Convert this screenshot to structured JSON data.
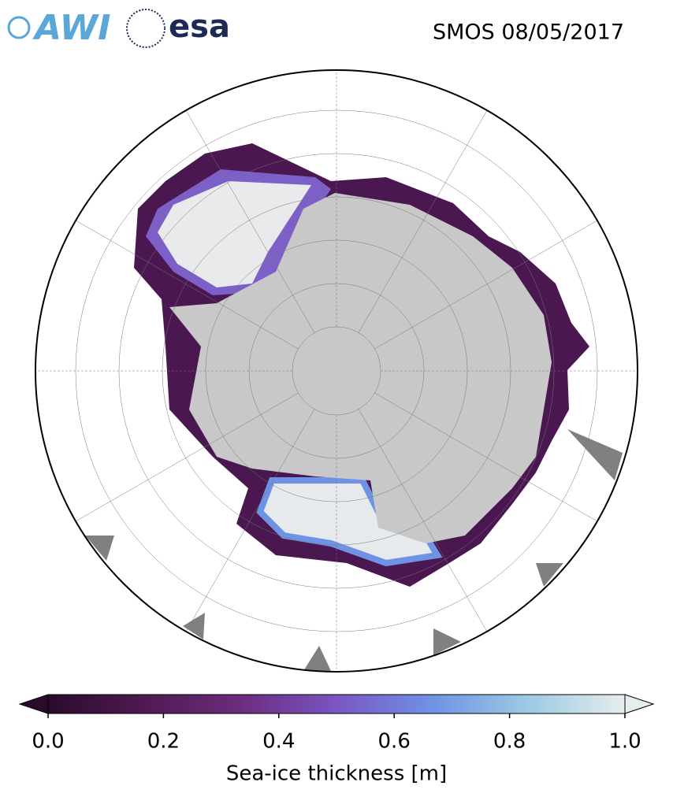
{
  "header": {
    "logos": [
      "AWI",
      "esa"
    ],
    "title": "SMOS 08/05/2017"
  },
  "colorbar": {
    "label": "Sea-ice thickness [m]",
    "lim": [
      0,
      1
    ],
    "ticks": [
      {
        "value": 0,
        "label": "0.0"
      },
      {
        "value": 0.2,
        "label": "0.2"
      },
      {
        "value": 0.4,
        "label": "0.4"
      },
      {
        "value": 0.6,
        "label": "0.6"
      },
      {
        "value": 0.8,
        "label": "0.8"
      },
      {
        "value": 1,
        "label": "1.0"
      }
    ],
    "colormap": [
      "#2a0b2c",
      "#4f1a52",
      "#6b2c7c",
      "#7a55c4",
      "#6f93e4",
      "#9ccbe3",
      "#e6eded"
    ]
  }
}
